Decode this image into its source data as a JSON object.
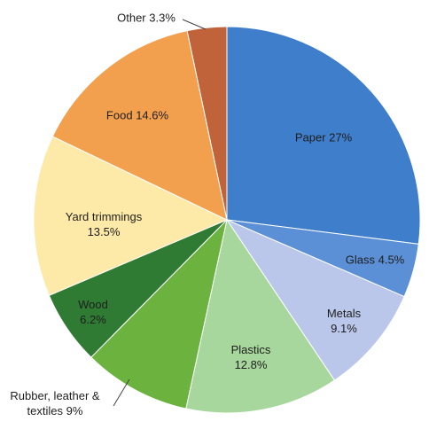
{
  "chart_data": {
    "type": "pie",
    "categories": [
      "Paper",
      "Glass",
      "Metals",
      "Plastics",
      "Rubber, leather & textiles",
      "Wood",
      "Yard trimmings",
      "Food",
      "Other"
    ],
    "values": [
      27,
      4.5,
      9.1,
      12.8,
      9,
      6.2,
      13.5,
      14.6,
      3.3
    ],
    "value_labels": [
      "27%",
      "4.5%",
      "9.1%",
      "12.8%",
      "9%",
      "6.2%",
      "13.5%",
      "14.6%",
      "3.3%"
    ],
    "colors": [
      "#3f7ecb",
      "#5b90d7",
      "#bac7ea",
      "#a7d79c",
      "#6cb23f",
      "#2f7b33",
      "#fde9a8",
      "#f2a04e",
      "#c0633a"
    ]
  }
}
